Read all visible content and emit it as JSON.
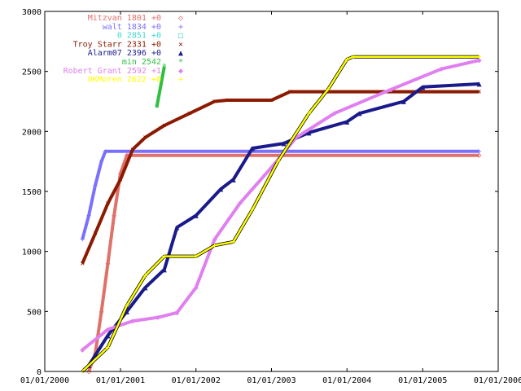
{
  "chart_data": {
    "type": "line",
    "title": "",
    "xlabel": "",
    "ylabel": "",
    "xlim": [
      "2000-01-01",
      "2006-01-01"
    ],
    "ylim": [
      0,
      3000
    ],
    "grid": false,
    "legend_position": "top-left",
    "x_tick_labels": [
      "01/01/2000",
      "01/01/2001",
      "01/01/2002",
      "01/01/2003",
      "01/01/2004",
      "01/01/2005",
      "01/01/2006"
    ],
    "x_ticks": [
      "2000-01-01",
      "2001-01-01",
      "2002-01-01",
      "2003-01-01",
      "2004-01-01",
      "2005-01-01",
      "2006-01-01"
    ],
    "y_tick_labels": [
      "0",
      "500",
      "1000",
      "1500",
      "2000",
      "2500",
      "3000"
    ],
    "y_ticks": [
      0,
      500,
      1000,
      1500,
      2000,
      2500,
      3000
    ],
    "series": [
      {
        "name": "Mitzvan",
        "legend_label": "Mitzvan 1801 +0",
        "marker": "◇",
        "color": "#e0706a",
        "points": [
          [
            "2000-08-01",
            0
          ],
          [
            "2000-09-01",
            150
          ],
          [
            "2000-10-01",
            500
          ],
          [
            "2000-11-01",
            900
          ],
          [
            "2000-12-01",
            1300
          ],
          [
            "2001-01-01",
            1650
          ],
          [
            "2001-02-01",
            1801
          ],
          [
            "2005-10-01",
            1801
          ]
        ]
      },
      {
        "name": "walt",
        "legend_label": "walt 1834 +0",
        "marker": "+",
        "color": "#7a70ff",
        "points": [
          [
            "2000-07-01",
            1100
          ],
          [
            "2000-08-01",
            1300
          ],
          [
            "2000-09-01",
            1550
          ],
          [
            "2000-10-01",
            1750
          ],
          [
            "2000-10-20",
            1834
          ],
          [
            "2005-10-01",
            1834
          ]
        ]
      },
      {
        "name": "0",
        "legend_label": "0 2851 +0",
        "marker": "□",
        "color": "#40d8d0",
        "points": []
      },
      {
        "name": "Troy Starr",
        "legend_label": "Troy Starr 2331 +0",
        "marker": "×",
        "color": "#8b1a00",
        "points": [
          [
            "2000-07-01",
            900
          ],
          [
            "2000-09-01",
            1150
          ],
          [
            "2000-11-01",
            1400
          ],
          [
            "2001-01-01",
            1600
          ],
          [
            "2001-03-01",
            1850
          ],
          [
            "2001-05-01",
            1950
          ],
          [
            "2001-08-01",
            2050
          ],
          [
            "2001-12-01",
            2150
          ],
          [
            "2002-04-01",
            2250
          ],
          [
            "2002-06-01",
            2260
          ],
          [
            "2003-01-01",
            2260
          ],
          [
            "2003-04-01",
            2331
          ],
          [
            "2005-10-01",
            2331
          ]
        ]
      },
      {
        "name": "Alarm07",
        "legend_label": "Alarm07 2396 +0",
        "marker": "▲",
        "color": "#1a1a8b",
        "points": [
          [
            "2000-08-01",
            50
          ],
          [
            "2000-11-01",
            300
          ],
          [
            "2001-02-01",
            500
          ],
          [
            "2001-05-01",
            700
          ],
          [
            "2001-08-01",
            850
          ],
          [
            "2001-10-01",
            1200
          ],
          [
            "2002-01-01",
            1300
          ],
          [
            "2002-05-01",
            1520
          ],
          [
            "2002-07-01",
            1600
          ],
          [
            "2002-10-01",
            1860
          ],
          [
            "2003-03-01",
            1900
          ],
          [
            "2003-07-01",
            1990
          ],
          [
            "2004-01-01",
            2080
          ],
          [
            "2004-03-01",
            2150
          ],
          [
            "2004-10-01",
            2250
          ],
          [
            "2005-01-01",
            2370
          ],
          [
            "2005-10-01",
            2396
          ]
        ]
      },
      {
        "name": "min",
        "legend_label": "min 2542",
        "marker": "*",
        "color": "#30c040",
        "points": [
          [
            "2001-06-25",
            2200
          ],
          [
            "2001-08-01",
            2542
          ]
        ]
      },
      {
        "name": "Robert Grant",
        "legend_label": "Robert Grant 2592 +1",
        "marker": "◆",
        "color": "#e080f0",
        "points": [
          [
            "2000-07-01",
            180
          ],
          [
            "2000-11-01",
            350
          ],
          [
            "2001-03-01",
            420
          ],
          [
            "2001-07-01",
            450
          ],
          [
            "2001-10-01",
            490
          ],
          [
            "2002-01-01",
            700
          ],
          [
            "2002-04-01",
            1100
          ],
          [
            "2002-08-01",
            1400
          ],
          [
            "2003-01-01",
            1700
          ],
          [
            "2003-05-01",
            1950
          ],
          [
            "2003-11-01",
            2150
          ],
          [
            "2004-08-01",
            2350
          ],
          [
            "2005-04-01",
            2520
          ],
          [
            "2005-10-01",
            2592
          ]
        ]
      },
      {
        "name": "OKMoren",
        "legend_label": "OKMoren 2622 +0",
        "marker": "+",
        "color": "#ffff00",
        "points": [
          [
            "2000-07-01",
            0
          ],
          [
            "2000-11-01",
            200
          ],
          [
            "2001-02-01",
            550
          ],
          [
            "2001-05-01",
            800
          ],
          [
            "2001-08-01",
            960
          ],
          [
            "2002-01-01",
            960
          ],
          [
            "2002-04-01",
            1050
          ],
          [
            "2002-07-01",
            1080
          ],
          [
            "2002-10-01",
            1350
          ],
          [
            "2003-02-01",
            1750
          ],
          [
            "2003-07-01",
            2150
          ],
          [
            "2003-10-01",
            2350
          ],
          [
            "2004-01-01",
            2600
          ],
          [
            "2004-02-01",
            2622
          ],
          [
            "2005-10-01",
            2622
          ]
        ]
      }
    ]
  }
}
